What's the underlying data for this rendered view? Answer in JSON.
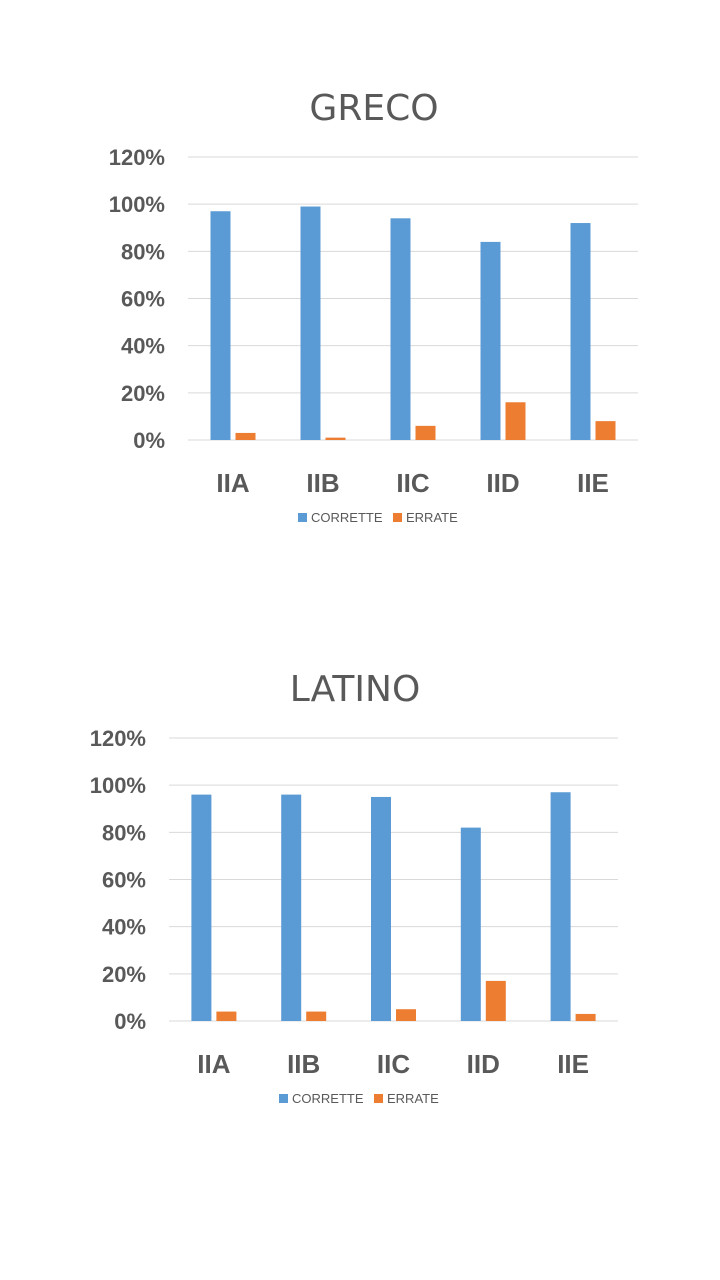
{
  "colors": {
    "corrette": "#5b9bd5",
    "errate": "#ed7d31",
    "text": "#595959",
    "grid": "#d9d9d9"
  },
  "chart_data": [
    {
      "type": "bar",
      "title": "GRECO",
      "categories": [
        "IIA",
        "IIB",
        "IIC",
        "IID",
        "IIE"
      ],
      "series": [
        {
          "name": "CORRETTE",
          "values": [
            97,
            99,
            94,
            84,
            92
          ]
        },
        {
          "name": "ERRATE",
          "values": [
            3,
            1,
            6,
            16,
            8
          ]
        }
      ],
      "ylim": [
        0,
        120
      ],
      "yticks": [
        "0%",
        "20%",
        "40%",
        "60%",
        "80%",
        "100%",
        "120%"
      ],
      "grid": true,
      "legend": "bottom"
    },
    {
      "type": "bar",
      "title": "LATINO",
      "categories": [
        "IIA",
        "IIB",
        "IIC",
        "IID",
        "IIE"
      ],
      "series": [
        {
          "name": "CORRETTE",
          "values": [
            96,
            96,
            95,
            82,
            97
          ]
        },
        {
          "name": "ERRATE",
          "values": [
            4,
            4,
            5,
            17,
            3
          ]
        }
      ],
      "ylim": [
        0,
        120
      ],
      "yticks": [
        "0%",
        "20%",
        "40%",
        "60%",
        "80%",
        "100%",
        "120%"
      ],
      "grid": true,
      "legend": "bottom"
    }
  ]
}
